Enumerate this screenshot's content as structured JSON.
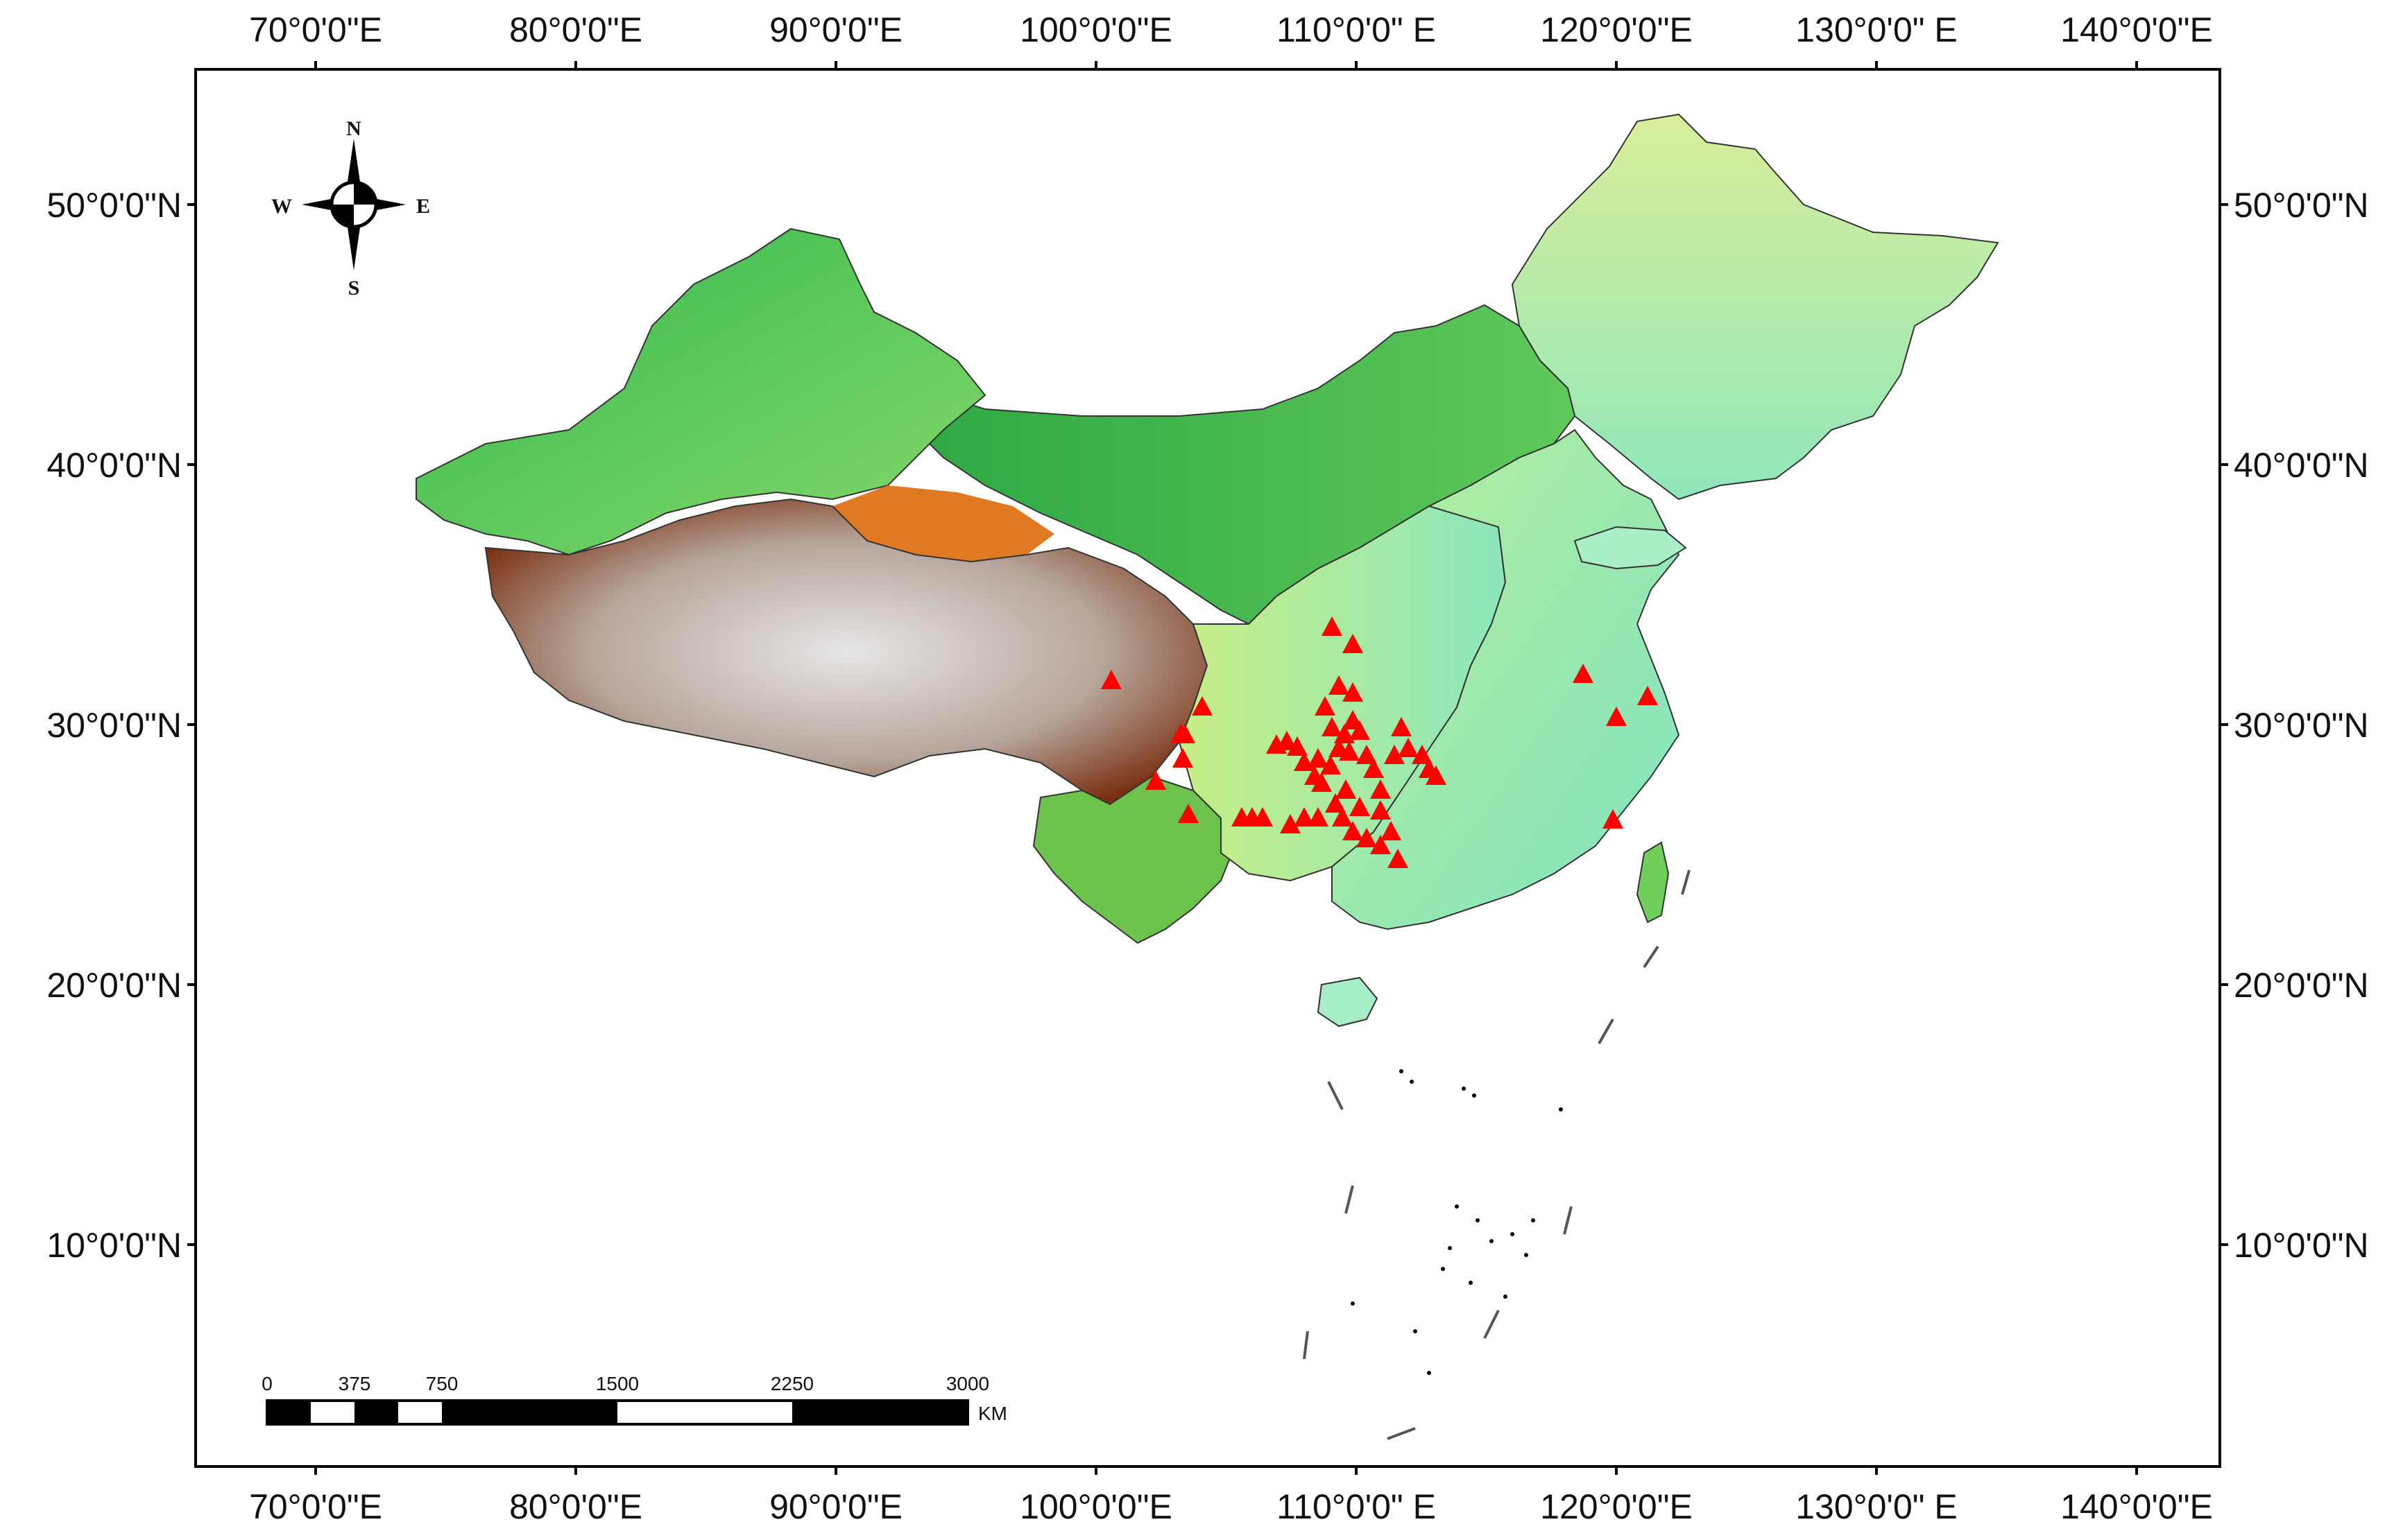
{
  "map": {
    "lon_labels": [
      "70°0'0\"E",
      "80°0'0\"E",
      "90°0'0\"E",
      "100°0'0\"E",
      "110°0'0\" E",
      "120°0'0\"E",
      "130°0'0\" E",
      "140°0'0\"E"
    ],
    "lat_labels": [
      "50°0'0\"N",
      "40°0'0\"N",
      "30°0'0\"N",
      "20°0'0\"N",
      "10°0'0\"N"
    ],
    "colors": {
      "frame": "#000000",
      "water": "#ffffff",
      "lowland": "#7fe3b8",
      "plain": "#a8f0c6",
      "basin_green": "#2bb54a",
      "mid_yellow": "#e9f2a0",
      "orange": "#e88a2a",
      "plateau_brown": "#8a3a14",
      "high_white": "#eeeeee",
      "marker": "#ff0000",
      "boundary": "#222222"
    },
    "marker_symbol": "red-triangle"
  },
  "compass": {
    "n": "N",
    "s": "S",
    "e": "E",
    "w": "W"
  },
  "scale_bar": {
    "ticks": [
      "0",
      "375",
      "750",
      "1500",
      "2250",
      "3000"
    ],
    "unit": "KM"
  }
}
